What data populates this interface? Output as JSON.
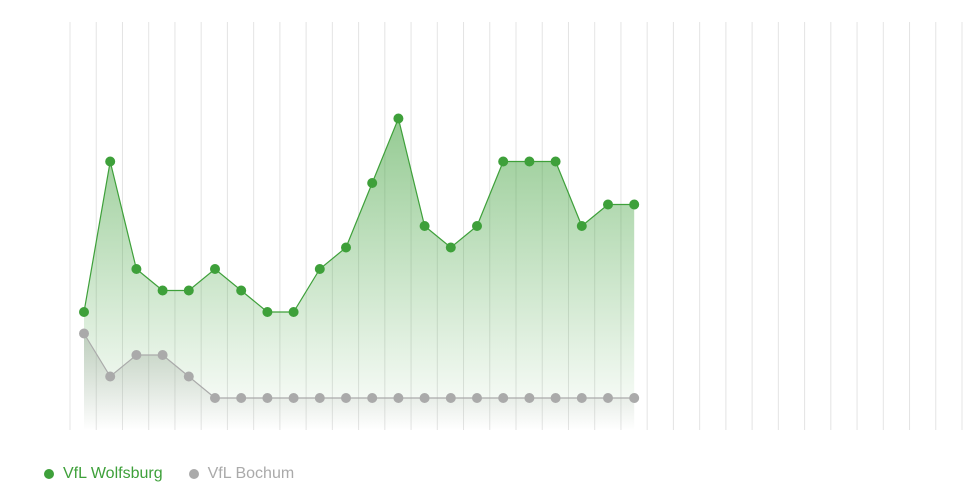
{
  "chart_data": {
    "type": "area",
    "x": [
      1,
      2,
      3,
      4,
      5,
      6,
      7,
      8,
      9,
      10,
      11,
      12,
      13,
      14,
      15,
      16,
      17,
      18,
      19,
      20,
      21,
      22,
      23
    ],
    "series": [
      {
        "name": "VfL Wolfsburg",
        "color": "#3ea03a",
        "values": [
          4,
          11,
          6,
          5,
          5,
          6,
          5,
          4,
          4,
          6,
          7,
          10,
          13,
          8,
          7,
          8,
          11,
          11,
          11,
          8,
          9,
          9,
          null
        ]
      },
      {
        "name": "VfL Bochum",
        "color": "#aaaaaa",
        "values": [
          3,
          1,
          2,
          2,
          1,
          0,
          0,
          0,
          0,
          0,
          0,
          0,
          0,
          0,
          0,
          0,
          0,
          0,
          0,
          0,
          0,
          0,
          null
        ]
      }
    ],
    "total_matchdays": 34,
    "ylim": [
      0,
      14
    ],
    "grid": "vertical",
    "legend_position": "bottom-left"
  }
}
